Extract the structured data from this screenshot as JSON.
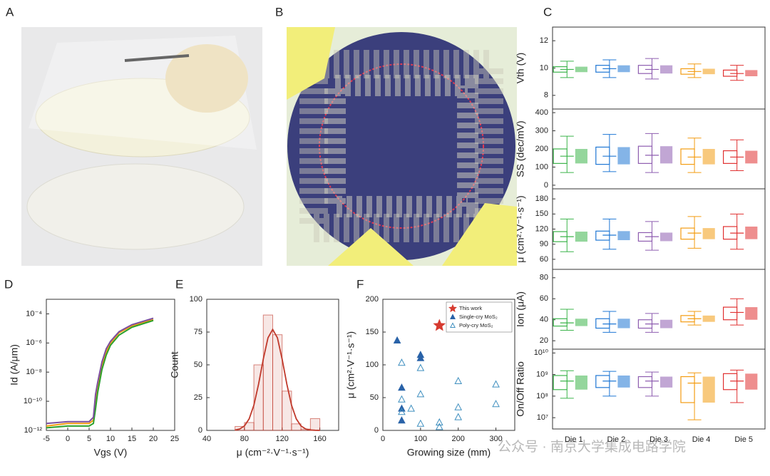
{
  "images": [
    {
      "label": "A"
    },
    {
      "label": "B"
    }
  ],
  "watermark": "公众号 · 南京大学集成电路学院",
  "chart_data": [
    {
      "type": "box",
      "panel_label": "C",
      "y_label": "Vth (V)",
      "ylim": [
        7,
        13
      ],
      "yticks": [
        8,
        10,
        12
      ],
      "boxes": [
        {
          "color": "#3cb44b",
          "min": 9.3,
          "q1": 9.7,
          "median": 9.9,
          "q3": 10.1,
          "max": 10.5
        },
        {
          "color": "#1f77d4",
          "min": 9.3,
          "q1": 9.7,
          "median": 9.95,
          "q3": 10.2,
          "max": 10.6
        },
        {
          "color": "#8e5db0",
          "min": 9.2,
          "q1": 9.6,
          "median": 9.9,
          "q3": 10.2,
          "max": 10.7
        },
        {
          "color": "#f39c12",
          "min": 9.3,
          "q1": 9.55,
          "median": 9.75,
          "q3": 9.95,
          "max": 10.3
        },
        {
          "color": "#e03131",
          "min": 9.1,
          "q1": 9.4,
          "median": 9.6,
          "q3": 9.85,
          "max": 10.2
        }
      ]
    },
    {
      "type": "box",
      "y_label": "SS (dec/mV)",
      "ylim": [
        -20,
        420
      ],
      "yticks": [
        0,
        100,
        200,
        300,
        400
      ],
      "boxes": [
        {
          "color": "#3cb44b",
          "min": 70,
          "q1": 120,
          "median": 160,
          "q3": 200,
          "max": 270
        },
        {
          "color": "#1f77d4",
          "min": 75,
          "q1": 115,
          "median": 160,
          "q3": 210,
          "max": 280
        },
        {
          "color": "#8e5db0",
          "min": 70,
          "q1": 120,
          "median": 165,
          "q3": 215,
          "max": 285
        },
        {
          "color": "#f39c12",
          "min": 70,
          "q1": 115,
          "median": 155,
          "q3": 200,
          "max": 260
        },
        {
          "color": "#e03131",
          "min": 80,
          "q1": 120,
          "median": 155,
          "q3": 190,
          "max": 250
        }
      ]
    },
    {
      "type": "box",
      "y_label": "μ (cm²·V⁻¹·s⁻¹)",
      "ylim": [
        40,
        200
      ],
      "yticks": [
        60,
        90,
        120,
        150,
        180
      ],
      "boxes": [
        {
          "color": "#3cb44b",
          "min": 75,
          "q1": 95,
          "median": 105,
          "q3": 115,
          "max": 140
        },
        {
          "color": "#1f77d4",
          "min": 80,
          "q1": 98,
          "median": 108,
          "q3": 116,
          "max": 140
        },
        {
          "color": "#8e5db0",
          "min": 78,
          "q1": 96,
          "median": 105,
          "q3": 113,
          "max": 135
        },
        {
          "color": "#f39c12",
          "min": 82,
          "q1": 100,
          "median": 112,
          "q3": 122,
          "max": 145
        },
        {
          "color": "#e03131",
          "min": 80,
          "q1": 100,
          "median": 112,
          "q3": 125,
          "max": 150
        }
      ]
    },
    {
      "type": "box",
      "y_label": "Ion (μA)",
      "ylim": [
        12,
        88
      ],
      "yticks": [
        20,
        40,
        60,
        80
      ],
      "boxes": [
        {
          "color": "#3cb44b",
          "min": 30,
          "q1": 34,
          "median": 37,
          "q3": 41,
          "max": 50
        },
        {
          "color": "#1f77d4",
          "min": 28,
          "q1": 32,
          "median": 36,
          "q3": 41,
          "max": 48
        },
        {
          "color": "#8e5db0",
          "min": 28,
          "q1": 32,
          "median": 36,
          "q3": 40,
          "max": 46
        },
        {
          "color": "#f39c12",
          "min": 35,
          "q1": 38,
          "median": 41,
          "q3": 44,
          "max": 48
        },
        {
          "color": "#e03131",
          "min": 35,
          "q1": 40,
          "median": 47,
          "q3": 52,
          "max": 60
        }
      ]
    },
    {
      "type": "box",
      "y_label": "On/Off Ratio",
      "log_y": true,
      "ylim": [
        3000000,
        15000000000
      ],
      "yticks": [
        {
          "value": 10000000,
          "label": "10⁷"
        },
        {
          "value": 100000000,
          "label": "10⁸"
        },
        {
          "value": 1000000000,
          "label": "10⁹"
        },
        {
          "value": 10000000000,
          "label": "10¹⁰"
        }
      ],
      "categories": [
        "Die 1",
        "Die 2",
        "Die 3",
        "Die 4",
        "Die 5"
      ],
      "boxes": [
        {
          "color": "#3cb44b",
          "min": 80000000,
          "q1": 200000000,
          "median": 500000000,
          "q3": 900000000,
          "max": 1500000000
        },
        {
          "color": "#1f77d4",
          "min": 100000000,
          "q1": 250000000,
          "median": 500000000,
          "q3": 900000000,
          "max": 1400000000
        },
        {
          "color": "#8e5db0",
          "min": 100000000,
          "q1": 250000000,
          "median": 500000000,
          "q3": 800000000,
          "max": 1300000000
        },
        {
          "color": "#f39c12",
          "min": 8000000,
          "q1": 50000000,
          "median": 400000000,
          "q3": 800000000,
          "max": 1200000000
        },
        {
          "color": "#e03131",
          "min": 50000000,
          "q1": 200000000,
          "median": 500000000,
          "q3": 1100000000,
          "max": 1600000000
        }
      ]
    },
    {
      "type": "line",
      "panel_label": "D",
      "x_label": "Vgs (V)",
      "y_label": "Id (A/μm)",
      "log_y": true,
      "xlim": [
        -5,
        25
      ],
      "xticks": [
        -5,
        0,
        5,
        10,
        15,
        20,
        25
      ],
      "ylim": [
        1e-12,
        0.001
      ],
      "yticks": [
        {
          "value": 1e-12,
          "label": "10⁻¹²"
        },
        {
          "value": 1e-10,
          "label": "10⁻¹⁰"
        },
        {
          "value": 1e-08,
          "label": "10⁻⁸"
        },
        {
          "value": 1e-06,
          "label": "10⁻⁶"
        },
        {
          "value": 0.0001,
          "label": "10⁻⁴"
        }
      ],
      "x": [
        -5,
        0,
        5,
        6,
        6.5,
        7,
        8,
        9,
        10,
        12,
        15,
        20
      ],
      "series": [
        {
          "color": "#f39c12",
          "values": [
            2e-12,
            3e-12,
            3e-12,
            5e-12,
            1e-10,
            1e-09,
            3e-08,
            2.5e-07,
            1e-06,
            5e-06,
            1.5e-05,
            4e-05
          ]
        },
        {
          "color": "#2ca02c",
          "values": [
            1.5e-12,
            2e-12,
            2e-12,
            3e-12,
            3e-11,
            4e-10,
            1.5e-08,
            1.5e-07,
            7e-07,
            3.5e-06,
            1.2e-05,
            3.5e-05
          ]
        },
        {
          "color": "#7b4fa0",
          "values": [
            3e-12,
            4e-12,
            4e-12,
            8e-12,
            3e-10,
            2e-09,
            5e-08,
            4e-07,
            1.3e-06,
            6e-06,
            1.8e-05,
            5e-05
          ]
        }
      ]
    },
    {
      "type": "histogram",
      "panel_label": "E",
      "x_label": "μ (cm⁻²·V⁻¹·s⁻¹)",
      "y_label": "Count",
      "xlim": [
        40,
        180
      ],
      "xticks": [
        40,
        80,
        120,
        160
      ],
      "ylim": [
        0,
        100
      ],
      "yticks": [
        0,
        25,
        50,
        75,
        100
      ],
      "color": "#c0392b",
      "bins": [
        70,
        80,
        90,
        100,
        110,
        120,
        130,
        140,
        150,
        160
      ],
      "counts": [
        3,
        6,
        50,
        88,
        73,
        30,
        5,
        1,
        9
      ],
      "fit": {
        "x": [
          70,
          75,
          80,
          85,
          90,
          95,
          100,
          105,
          110,
          115,
          120,
          125,
          130,
          135,
          140,
          145,
          150,
          155,
          160
        ],
        "y": [
          0.3,
          1.1,
          3.4,
          8.8,
          19.2,
          35.3,
          54.4,
          70.6,
          77,
          70.6,
          54.4,
          35.3,
          19.2,
          8.8,
          3.4,
          1.1,
          0.3,
          0.1,
          0
        ]
      }
    },
    {
      "type": "scatter",
      "panel_label": "F",
      "x_label": "Growing size (mm)",
      "y_label": "μ (cm²·V⁻¹·s⁻¹)",
      "xlim": [
        0,
        350
      ],
      "xticks": [
        0,
        100,
        200,
        300
      ],
      "ylim": [
        0,
        200
      ],
      "yticks": [
        0,
        50,
        100,
        150,
        200
      ],
      "legend": "upper right",
      "series": [
        {
          "name": "This work",
          "marker": "star",
          "color": "#d63a2f",
          "x": [
            150
          ],
          "values": [
            160
          ]
        },
        {
          "name": "Single-cry MoS₂",
          "marker": "triangle",
          "color": "#2962a8",
          "x": [
            38,
            50,
            50,
            50,
            100,
            100
          ],
          "values": [
            137,
            65,
            33,
            15,
            115,
            110
          ]
        },
        {
          "name": "Poly-cry MoS₂",
          "marker": "triangle-open",
          "color": "#3f8fbf",
          "x": [
            50,
            50,
            50,
            75,
            100,
            100,
            100,
            150,
            150,
            200,
            200,
            200,
            300,
            300
          ],
          "values": [
            103,
            47,
            28,
            33,
            95,
            55,
            10,
            12,
            5,
            75,
            35,
            20,
            70,
            40
          ]
        }
      ]
    }
  ]
}
